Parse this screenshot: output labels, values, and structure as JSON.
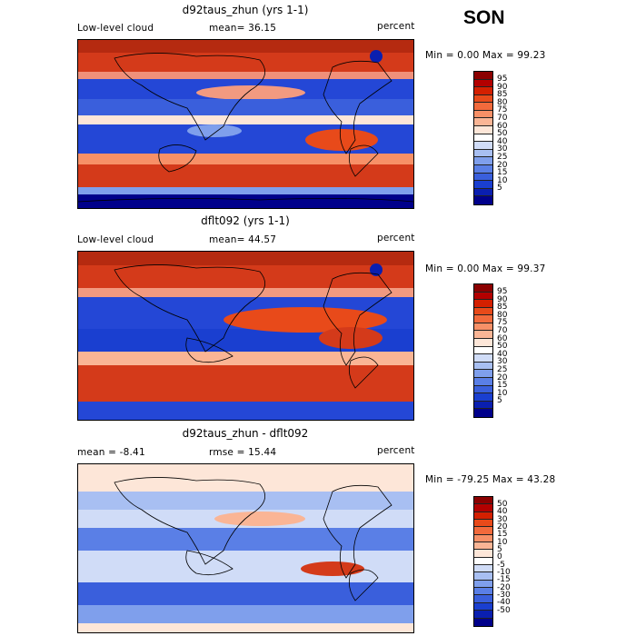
{
  "season": "SON",
  "panels": [
    {
      "title": "d92taus_zhun (yrs 1-1)",
      "left_label": "Low-level cloud",
      "mid_label": "mean=  36.15",
      "units": "percent",
      "stats": "Min =   0.00 Max =  99.23",
      "type": "absolute"
    },
    {
      "title": "dflt092 (yrs 1-1)",
      "left_label": "Low-level cloud",
      "mid_label": "mean=  44.57",
      "units": "percent",
      "stats": "Min =   0.00 Max =  99.37",
      "type": "absolute"
    },
    {
      "title": "d92taus_zhun - dflt092",
      "left_label": "mean =  -8.41",
      "mid_label": "rmse =  15.44",
      "units": "percent",
      "stats": "Min = -79.25 Max =  43.28",
      "type": "difference"
    }
  ],
  "colorbar_abs": {
    "labels": [
      "95",
      "90",
      "85",
      "80",
      "75",
      "70",
      "60",
      "50",
      "40",
      "30",
      "25",
      "20",
      "15",
      "10",
      "5"
    ],
    "colors": [
      "#8b0000",
      "#b30000",
      "#d42000",
      "#e84a1a",
      "#f26a3c",
      "#f79067",
      "#fab595",
      "#fde6d8",
      "#ffffff",
      "#d0dcf7",
      "#a8bff2",
      "#7f9fec",
      "#5a7fe6",
      "#3a5fdc",
      "#1a3fd0",
      "#0a1fb0",
      "#00008b"
    ]
  },
  "colorbar_diff": {
    "labels": [
      "50",
      "40",
      "30",
      "20",
      "15",
      "10",
      "5",
      "0",
      "-5",
      "-10",
      "-15",
      "-20",
      "-30",
      "-40",
      "-50"
    ],
    "colors": [
      "#8b0000",
      "#b30000",
      "#d42000",
      "#e84a1a",
      "#f26a3c",
      "#f79067",
      "#fab595",
      "#fde6d8",
      "#ffffff",
      "#d0dcf7",
      "#a8bff2",
      "#7f9fec",
      "#5a7fe6",
      "#3a5fdc",
      "#1a3fd0",
      "#0a1fb0",
      "#00008b"
    ]
  },
  "colors": {
    "red": "#d43a1a",
    "blue": "#1a3fd0",
    "darkblue": "#00008b",
    "coast": "#000000"
  }
}
